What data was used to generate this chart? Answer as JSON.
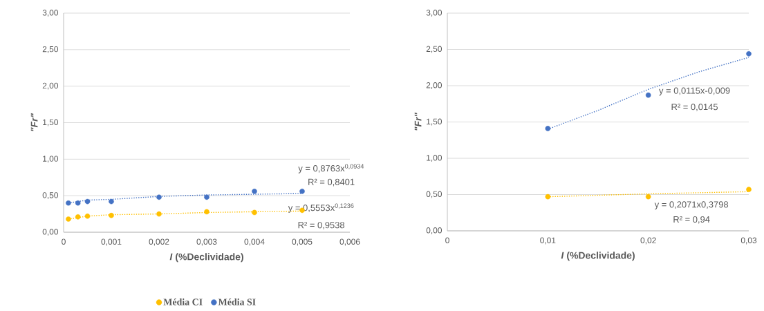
{
  "chart_data": [
    {
      "type": "scatter",
      "xlabel": "*I* (%Declividade)",
      "ylabel": "\"Fr\"",
      "xlim": [
        0,
        0.006
      ],
      "xticks": [
        0,
        {
          "value": 0.001,
          "label": "0,001"
        },
        {
          "value": 0.002,
          "label": "0,002"
        },
        {
          "value": 0.003,
          "label": "0,003"
        },
        {
          "value": 0.004,
          "label": "0,004"
        },
        {
          "value": 0.005,
          "label": "0,005"
        },
        {
          "value": 0.006,
          "label": "0,006"
        }
      ],
      "ylim": [
        0,
        3
      ],
      "yticks": [
        {
          "value": 0,
          "label": "0,00"
        },
        {
          "value": 0.5,
          "label": "0,50"
        },
        {
          "value": 1,
          "label": "1,00"
        },
        {
          "value": 1.5,
          "label": "1,50"
        },
        {
          "value": 2,
          "label": "2,00"
        },
        {
          "value": 2.5,
          "label": "2,50"
        },
        {
          "value": 3,
          "label": "3,00"
        }
      ],
      "grid": "y",
      "legend": "bottom",
      "marker": "circle",
      "series": [
        {
          "name": "Média CI",
          "color": "#ffc000",
          "x": [
            0.0001,
            0.0003,
            0.0005,
            0.001,
            0.002,
            0.003,
            0.004,
            0.005
          ],
          "values": [
            0.18,
            0.21,
            0.22,
            0.23,
            0.25,
            0.28,
            0.27,
            0.3
          ]
        },
        {
          "name": "Média SI",
          "color": "#4472c4",
          "x": [
            0.0001,
            0.0003,
            0.0005,
            0.001,
            0.002,
            0.003,
            0.004,
            0.005
          ],
          "values": [
            0.4,
            0.4,
            0.42,
            0.42,
            0.48,
            0.48,
            0.56,
            0.56
          ]
        },
        {
          "type": "line",
          "color": "#ffc000",
          "line_style": "dotted",
          "marker": "none",
          "x": [
            0.0001,
            0.0005,
            0.001,
            0.002,
            0.003,
            0.004,
            0.005
          ],
          "values": [
            0.18,
            0.22,
            0.24,
            0.25,
            0.27,
            0.28,
            0.29
          ]
        },
        {
          "type": "line",
          "color": "#4472c4",
          "line_style": "dotted",
          "marker": "none",
          "x": [
            0.0001,
            0.0005,
            0.001,
            0.002,
            0.003,
            0.004,
            0.005
          ],
          "values": [
            0.4,
            0.44,
            0.45,
            0.49,
            0.51,
            0.52,
            0.53
          ]
        }
      ],
      "annotations": [
        "y = 0,8763x$^{0,0934}$",
        "R² = 0,8401",
        "y = 0,5553x$^{0,1236}$",
        "R² = 0,9538"
      ]
    },
    {
      "type": "scatter",
      "xlabel": "*I* (%Declividade)",
      "ylabel": "\"Fr\"",
      "xlim": [
        0,
        0.03
      ],
      "xticks": [
        0,
        {
          "value": 0.01,
          "label": "0,01"
        },
        {
          "value": 0.02,
          "label": "0,02"
        },
        {
          "value": 0.03,
          "label": "0,03"
        }
      ],
      "ylim": [
        0,
        3
      ],
      "yticks": [
        {
          "value": 0,
          "label": "0,00"
        },
        {
          "value": 0.5,
          "label": "0,50"
        },
        {
          "value": 1,
          "label": "1,00"
        },
        {
          "value": 1.5,
          "label": "1,50"
        },
        {
          "value": 2,
          "label": "2,00"
        },
        {
          "value": 2.5,
          "label": "2,50"
        },
        {
          "value": 3,
          "label": "3,00"
        }
      ],
      "grid": "y",
      "marker": "circle",
      "series": [
        {
          "color": "#ffc000",
          "x": [
            0.01,
            0.02,
            0.03
          ],
          "values": [
            0.47,
            0.47,
            0.57
          ]
        },
        {
          "color": "#4472c4",
          "x": [
            0.01,
            0.02,
            0.03
          ],
          "values": [
            1.41,
            1.87,
            2.44
          ]
        },
        {
          "type": "line",
          "color": "#ffc000",
          "line_style": "dotted",
          "marker": "none",
          "x": [
            0.01,
            0.02,
            0.03
          ],
          "values": [
            0.47,
            0.51,
            0.54
          ]
        },
        {
          "type": "line",
          "color": "#4472c4",
          "line_style": "dotted",
          "marker": "none",
          "x": [
            0.01,
            0.015,
            0.02,
            0.025,
            0.03
          ],
          "values": [
            1.4,
            1.66,
            1.95,
            2.19,
            2.39
          ]
        }
      ],
      "annotations": [
        "y = 0,0115x-0,009",
        "R² = 0,0145",
        "y = 0,2071x0,3798",
        "R² = 0,94"
      ]
    }
  ]
}
